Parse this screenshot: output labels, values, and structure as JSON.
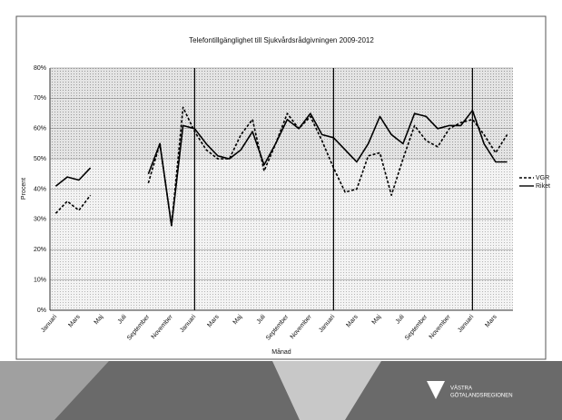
{
  "chart_data": {
    "type": "line",
    "title": "Telefontillgänglighet till Sjukvårdsrådgivningen 2009-2012",
    "y_label": "Procent",
    "x_label": "Månad",
    "categories": [
      "Januari",
      null,
      "Mars",
      null,
      "Maj",
      null,
      "Juli",
      null,
      "September",
      null,
      "November",
      null,
      "Januari",
      null,
      "Mars",
      null,
      "Maj",
      null,
      "Juli",
      null,
      "September",
      null,
      "November",
      null,
      "Januari",
      null,
      "Mars",
      null,
      "Maj",
      null,
      "Juli",
      null,
      "September",
      null,
      "November",
      null,
      "Januari",
      null,
      "Mars",
      null
    ],
    "series": [
      {
        "name": "VGR",
        "color": "#000000",
        "line_style": "dashed",
        "values": [
          32,
          36,
          33,
          38,
          null,
          null,
          null,
          null,
          42,
          55,
          28,
          67,
          59,
          53,
          50,
          50,
          58,
          63,
          46,
          55,
          65,
          60,
          64,
          56,
          47,
          39,
          40,
          51,
          52,
          38,
          50,
          61,
          56,
          54,
          60,
          62,
          63,
          58,
          52,
          58
        ]
      },
      {
        "name": "Riket",
        "color": "#000000",
        "line_style": "solid",
        "values": [
          41,
          44,
          43,
          47,
          null,
          null,
          null,
          null,
          45,
          55,
          28,
          61,
          60,
          55,
          51,
          50,
          53,
          59,
          48,
          55,
          63,
          60,
          65,
          58,
          57,
          53,
          49,
          55,
          64,
          58,
          55,
          65,
          64,
          60,
          61,
          61,
          66,
          55,
          49,
          49
        ]
      }
    ],
    "ylim": [
      0,
      80
    ],
    "yticks": [
      {
        "value": 0,
        "label": "0%"
      },
      {
        "value": 10,
        "label": "10%"
      },
      {
        "value": 20,
        "label": "20%"
      },
      {
        "value": 30,
        "label": "30%"
      },
      {
        "value": 40,
        "label": "40%"
      },
      {
        "value": 50,
        "label": "50%"
      },
      {
        "value": 60,
        "label": "60%"
      },
      {
        "value": 70,
        "label": "70%"
      },
      {
        "value": 80,
        "label": "80%"
      }
    ],
    "grid": true,
    "legend": "right"
  },
  "footer": {
    "logo": [
      "VÄSTRA",
      "GÖTALANDSREGIONEN"
    ]
  }
}
